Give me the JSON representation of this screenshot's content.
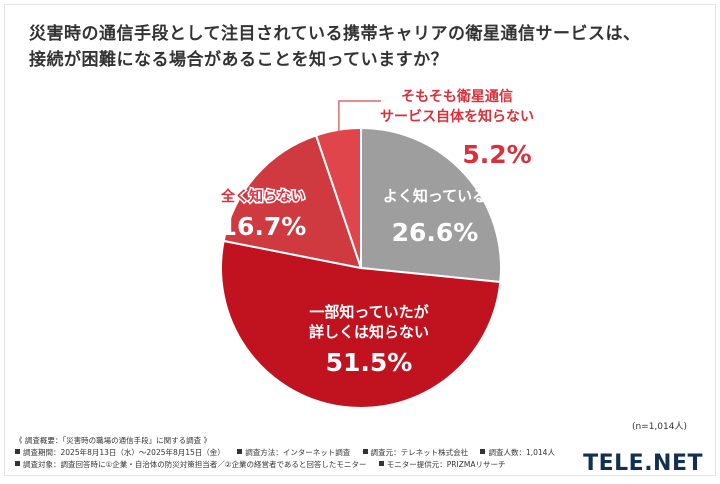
{
  "title_lines": [
    "災害時の通信手段として注目されている携帯キャリアの衛星通信サービスは、",
    "接続が困難になる場合があることを知っていますか？"
  ],
  "chart_data": {
    "type": "pie",
    "slices": [
      {
        "label_lines": [
          "よく知っている"
        ],
        "value": 26.6,
        "value_label": "26.6%",
        "color": "#9e9e9e"
      },
      {
        "label_lines": [
          "一部知っていたが",
          "詳しくは知らない"
        ],
        "value": 51.5,
        "value_label": "51.5%",
        "color": "#c1121f"
      },
      {
        "label_lines": [
          "全く知らない"
        ],
        "value": 16.7,
        "value_label": "16.7%",
        "color": "#cf3a41"
      },
      {
        "label_lines": [
          "そもそも衛星通信",
          "サービス自体を知らない"
        ],
        "value": 5.2,
        "value_label": "5.2%",
        "color": "#e0454c"
      }
    ],
    "start": "12 o'clock",
    "direction": "clockwise"
  },
  "n_label": "(n=1,014人)",
  "footer": {
    "survey_title": "《 調査概要：「災害時の職場の通信手段」に関する調査 》",
    "row2": [
      "調査期間：2025年8月13日（水）〜2025年8月15日（金）",
      "調査方法：インターネット調査",
      "調査元：テレネット株式会社",
      "調査人数：1,014人"
    ],
    "row3": [
      "調査対象：調査回答時に①企業・自治体の防災対策担当者／②企業の経営者であると回答したモニター",
      "モニター提供元：PRIZMAリサーチ"
    ]
  },
  "logo_text": "TELE.NET"
}
